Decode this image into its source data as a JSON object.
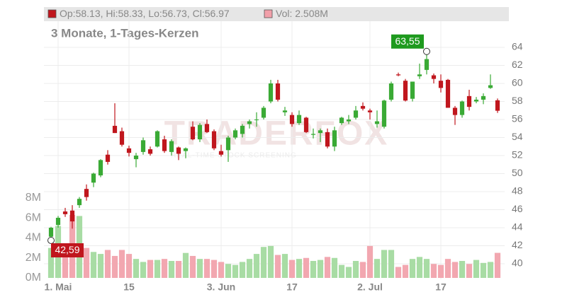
{
  "chart_data": {
    "type": "candlestick",
    "legend": {
      "ohlc": "Op:58.13, Hi:58.33, Lo:56.73, Cl:56.97",
      "volume": "Vol: 2.508M",
      "up_color": "#c0161d",
      "vol_color": "#f2a0aa"
    },
    "subtitle": "3 Monate, 1-Tages-Kerzen",
    "watermark": "TRADERFOX",
    "watermark_sub": "REAL-TIME STOCK SCREENING",
    "up_color": "#3aaa35",
    "down_color": "#c0161d",
    "vol_up_color": "#a8dca4",
    "vol_down_color": "#f2a7b0",
    "xlim": [
      -1,
      64
    ],
    "xticks": [
      {
        "value": 1,
        "label": "1. Mai"
      },
      {
        "value": 11,
        "label": "15"
      },
      {
        "value": 24,
        "label": "3. Jun"
      },
      {
        "value": 34,
        "label": "17"
      },
      {
        "value": 45,
        "label": "2. Jul"
      },
      {
        "value": 55,
        "label": "17"
      }
    ],
    "ylim": [
      40,
      64
    ],
    "yticks": [
      40,
      42,
      44,
      46,
      48,
      50,
      52,
      54,
      56,
      58,
      60,
      62,
      64
    ],
    "vlim": [
      0,
      8
    ],
    "vticks": [
      {
        "value": 0,
        "label": "0M"
      },
      {
        "value": 2,
        "label": "2M"
      },
      {
        "value": 4,
        "label": "4M"
      },
      {
        "value": 6,
        "label": "6M"
      },
      {
        "value": 8,
        "label": "8M"
      }
    ],
    "grid": true,
    "open": [
      43.0,
      44.3,
      45.8,
      45.9,
      46.5,
      48.3,
      49.0,
      49.8,
      52.1,
      55.3,
      54.7,
      52.8,
      51.6,
      52.4,
      52.7,
      53.0,
      53.8,
      52.4,
      52.9,
      52.5,
      55.2,
      53.8,
      55.5,
      54.7,
      52.5,
      52.6,
      54.0,
      54.4,
      55.5,
      56.0,
      56.2,
      58.0,
      60.0,
      56.8,
      56.5,
      55.6,
      56.2,
      54.3,
      54.5,
      54.6,
      53.0,
      55.6,
      55.8,
      56.2,
      57.5,
      57.0,
      55.5,
      55.2,
      58.2,
      61.0,
      60.3,
      58.3,
      60.8,
      61.5,
      60.9,
      60.3,
      60.4,
      57.3,
      56.5,
      58.6,
      58.0,
      58.2,
      59.5,
      58.13
    ],
    "high": [
      44.1,
      45.3,
      46.2,
      46.5,
      47.4,
      48.8,
      50.1,
      51.6,
      52.6,
      57.8,
      55.1,
      53.1,
      52.3,
      54.0,
      53.0,
      54.8,
      54.2,
      53.8,
      53.0,
      52.9,
      55.8,
      55.6,
      56.0,
      54.9,
      53.2,
      54.2,
      55.0,
      55.5,
      56.0,
      56.8,
      57.5,
      60.4,
      60.4,
      57.4,
      56.8,
      57.0,
      56.3,
      55.0,
      55.0,
      55.0,
      55.2,
      56.3,
      56.5,
      57.5,
      57.9,
      57.2,
      57.0,
      58.2,
      60.2,
      61.2,
      60.5,
      60.2,
      62.2,
      63.55,
      61.1,
      61.0,
      60.5,
      57.5,
      58.1,
      59.3,
      58.5,
      58.9,
      61.0,
      58.33
    ],
    "low": [
      42.59,
      44.0,
      45.2,
      43.9,
      46.2,
      47.0,
      48.5,
      49.6,
      51.0,
      54.5,
      53.0,
      51.9,
      50.7,
      52.1,
      52.0,
      52.9,
      52.3,
      52.0,
      51.5,
      51.7,
      53.7,
      53.5,
      54.5,
      52.6,
      51.9,
      51.3,
      53.8,
      54.0,
      55.0,
      55.2,
      56.0,
      57.8,
      58.0,
      56.4,
      55.2,
      55.4,
      54.5,
      53.9,
      53.5,
      52.8,
      52.5,
      55.4,
      55.5,
      56.0,
      57.0,
      56.0,
      55.1,
      55.0,
      58.0,
      60.8,
      58.0,
      58.0,
      60.5,
      61.0,
      60.0,
      59.0,
      57.3,
      55.4,
      56.2,
      57.0,
      57.8,
      57.7,
      59.4,
      56.73
    ],
    "close": [
      44.0,
      45.1,
      45.5,
      44.7,
      47.2,
      47.4,
      50.0,
      51.5,
      51.3,
      54.5,
      53.2,
      52.3,
      52.0,
      53.7,
      52.2,
      54.7,
      52.5,
      53.6,
      52.2,
      52.8,
      53.8,
      55.4,
      54.6,
      52.8,
      52.1,
      54.0,
      54.8,
      55.3,
      55.8,
      56.0,
      57.3,
      60.0,
      58.2,
      57.0,
      55.5,
      56.5,
      54.6,
      54.4,
      54.8,
      53.0,
      54.8,
      56.2,
      56.0,
      57.0,
      57.2,
      56.8,
      55.8,
      58.1,
      60.0,
      60.9,
      58.1,
      60.2,
      61.0,
      62.7,
      60.5,
      59.5,
      57.3,
      56.5,
      58.0,
      57.4,
      58.2,
      58.6,
      59.8,
      56.97
    ],
    "volume": [
      3.0,
      5.2,
      3.2,
      6.3,
      6.2,
      3.0,
      2.6,
      2.4,
      2.8,
      2.2,
      2.8,
      2.4,
      1.9,
      1.6,
      1.8,
      1.8,
      1.9,
      1.7,
      1.7,
      2.5,
      2.2,
      1.9,
      1.9,
      1.8,
      1.6,
      1.4,
      1.3,
      1.6,
      1.9,
      2.4,
      3.1,
      3.2,
      2.3,
      2.4,
      1.8,
      1.9,
      2.0,
      1.7,
      1.8,
      2.1,
      2.0,
      1.3,
      1.1,
      1.7,
      1.6,
      3.2,
      1.9,
      2.8,
      2.8,
      1.1,
      1.3,
      1.9,
      2.1,
      1.9,
      1.4,
      1.3,
      1.9,
      1.6,
      1.7,
      1.4,
      1.8,
      1.5,
      1.6,
      2.508
    ],
    "annotations": [
      {
        "label": "63,55",
        "x": 53,
        "y": 63.55,
        "color": "#1e9a1e"
      },
      {
        "label": "42,59",
        "x": 0,
        "y": 42.59,
        "color": "#c0161d"
      }
    ]
  }
}
